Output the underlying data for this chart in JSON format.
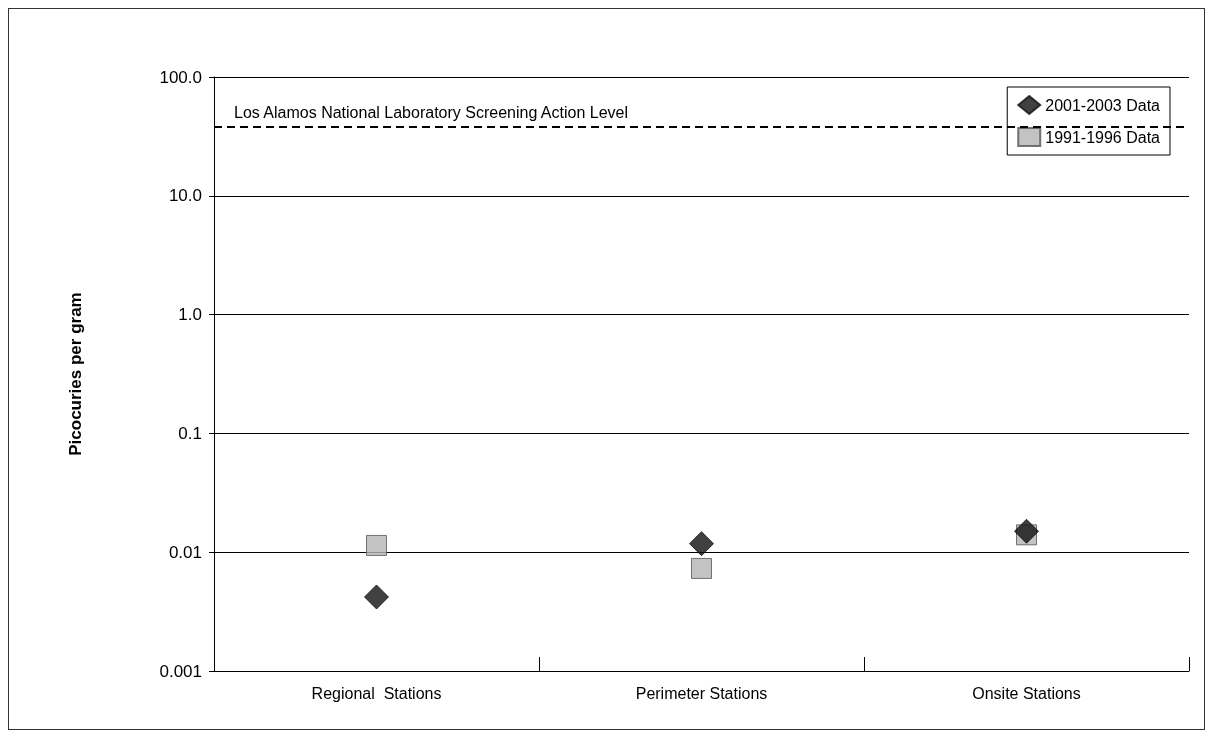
{
  "chart_data": {
    "type": "scatter",
    "ylabel": "Picocuries per gram",
    "categories": [
      "Regional  Stations",
      "Perimeter Stations",
      "Onsite Stations"
    ],
    "series": [
      {
        "name": "2001-2003 Data",
        "color": "#111111",
        "marker": "diamond",
        "values": [
          0.0042,
          0.0118,
          0.015
        ]
      },
      {
        "name": "1991-1996 Data",
        "color": "#b4b4b4",
        "marker": "square",
        "values": [
          0.0114,
          0.0073,
          0.014
        ]
      }
    ],
    "log": "y",
    "ylim": [
      0.001,
      100
    ],
    "yticks": [
      0.001,
      0.01,
      0.1,
      {
        "value": 1,
        "label": "1.0"
      },
      {
        "value": 10,
        "label": "10.0"
      },
      {
        "value": 100,
        "label": "100.0"
      }
    ],
    "grid": "y",
    "legend": "top right",
    "ref_lines": [
      {
        "axis": "y",
        "value": 38,
        "label": "Los Alamos National Laboratory Screening Action Level",
        "color": "#000000",
        "line_style": "dashed"
      }
    ]
  }
}
